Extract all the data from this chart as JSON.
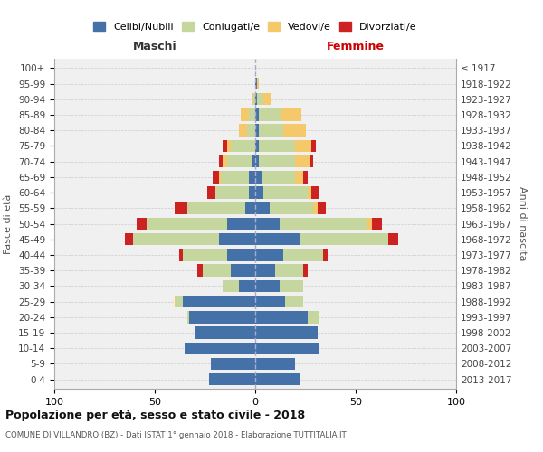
{
  "age_groups": [
    "0-4",
    "5-9",
    "10-14",
    "15-19",
    "20-24",
    "25-29",
    "30-34",
    "35-39",
    "40-44",
    "45-49",
    "50-54",
    "55-59",
    "60-64",
    "65-69",
    "70-74",
    "75-79",
    "80-84",
    "85-89",
    "90-94",
    "95-99",
    "100+"
  ],
  "birth_years": [
    "2013-2017",
    "2008-2012",
    "2003-2007",
    "1998-2002",
    "1993-1997",
    "1988-1992",
    "1983-1987",
    "1978-1982",
    "1973-1977",
    "1968-1972",
    "1963-1967",
    "1958-1962",
    "1953-1957",
    "1948-1952",
    "1943-1947",
    "1938-1942",
    "1933-1937",
    "1928-1932",
    "1923-1927",
    "1918-1922",
    "≤ 1917"
  ],
  "colors": {
    "celibi": "#4472a8",
    "coniugati": "#c5d69e",
    "vedovi": "#f5c96a",
    "divorziati": "#cc2222"
  },
  "males": {
    "celibi": [
      23,
      22,
      35,
      30,
      33,
      36,
      8,
      12,
      14,
      18,
      14,
      5,
      3,
      3,
      2,
      0,
      0,
      0,
      0,
      0,
      0
    ],
    "coniugati": [
      0,
      0,
      0,
      0,
      1,
      3,
      8,
      14,
      22,
      43,
      40,
      29,
      17,
      14,
      12,
      12,
      4,
      3,
      1,
      0,
      0
    ],
    "vedovi": [
      0,
      0,
      0,
      0,
      0,
      1,
      0,
      0,
      0,
      0,
      0,
      0,
      0,
      1,
      2,
      2,
      4,
      4,
      1,
      0,
      0
    ],
    "divorziati": [
      0,
      0,
      0,
      0,
      0,
      0,
      0,
      3,
      2,
      4,
      5,
      6,
      4,
      3,
      2,
      2,
      0,
      0,
      0,
      0,
      0
    ]
  },
  "females": {
    "celibi": [
      22,
      20,
      32,
      31,
      26,
      15,
      12,
      10,
      14,
      22,
      12,
      7,
      4,
      3,
      2,
      2,
      2,
      2,
      1,
      1,
      0
    ],
    "coniugati": [
      0,
      0,
      0,
      0,
      6,
      9,
      12,
      14,
      20,
      44,
      44,
      22,
      22,
      17,
      18,
      18,
      12,
      11,
      3,
      0,
      0
    ],
    "vedovi": [
      0,
      0,
      0,
      0,
      0,
      0,
      0,
      0,
      0,
      0,
      2,
      2,
      2,
      4,
      7,
      8,
      11,
      10,
      4,
      1,
      0
    ],
    "divorziati": [
      0,
      0,
      0,
      0,
      0,
      0,
      0,
      2,
      2,
      5,
      5,
      4,
      4,
      2,
      2,
      2,
      0,
      0,
      0,
      0,
      0
    ]
  },
  "xlim": 100,
  "title": "Popolazione per età, sesso e stato civile - 2018",
  "subtitle": "COMUNE DI VILLANDRO (BZ) - Dati ISTAT 1° gennaio 2018 - Elaborazione TUTTITALIA.IT",
  "ylabel": "Fasce di età",
  "ylabel_right": "Anni di nascita",
  "xlabel_left": "Maschi",
  "xlabel_right": "Femmine",
  "legend_labels": [
    "Celibi/Nubili",
    "Coniugati/e",
    "Vedovi/e",
    "Divorziati/e"
  ],
  "background_color": "#ffffff",
  "plot_bg_color": "#f0f0f0"
}
